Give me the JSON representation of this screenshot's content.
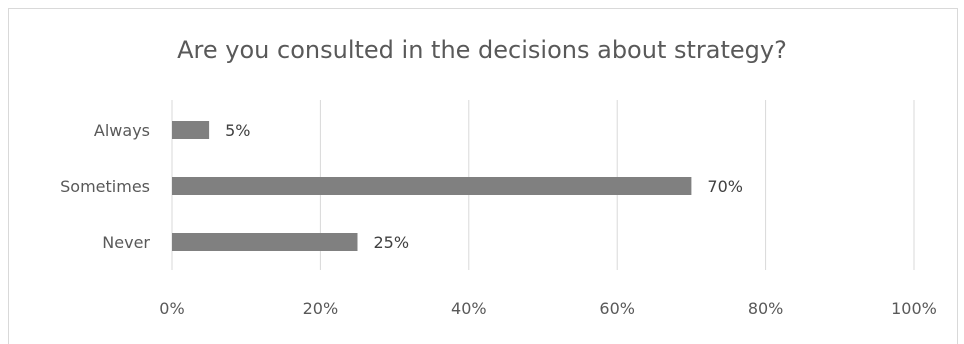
{
  "chart_data": {
    "type": "bar",
    "orientation": "horizontal",
    "title": "Are you consulted in the decisions about strategy?",
    "categories": [
      "Always",
      "Sometimes",
      "Never"
    ],
    "values": [
      5,
      70,
      25
    ],
    "data_labels": [
      "5%",
      "70%",
      "25%"
    ],
    "xlim": [
      0,
      100
    ],
    "x_ticks": [
      "0%",
      "20%",
      "40%",
      "60%",
      "80%",
      "100%"
    ],
    "grid": true,
    "bar_color": "#808080",
    "grid_color": "#d9d9d9"
  }
}
